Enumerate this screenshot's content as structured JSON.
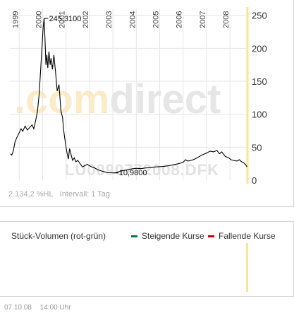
{
  "chart_data": {
    "type": "line",
    "years": [
      "1999",
      "2000",
      "2001",
      "2002",
      "2003",
      "2004",
      "2005",
      "2006",
      "2007",
      "2008"
    ],
    "y_ticks": [
      "250",
      "200",
      "150",
      "100",
      "50",
      "0"
    ],
    "ylim": [
      0,
      255
    ],
    "xlim": [
      1998.6,
      2008.75
    ],
    "grid": true,
    "series": [
      {
        "values": [
          [
            1998.62,
            40
          ],
          [
            1998.68,
            38
          ],
          [
            1998.75,
            45
          ],
          [
            1998.82,
            58
          ],
          [
            1998.9,
            65
          ],
          [
            1999.0,
            72
          ],
          [
            1999.08,
            78
          ],
          [
            1999.15,
            74
          ],
          [
            1999.25,
            82
          ],
          [
            1999.35,
            76
          ],
          [
            1999.45,
            80
          ],
          [
            1999.55,
            84
          ],
          [
            1999.62,
            78
          ],
          [
            1999.7,
            90
          ],
          [
            1999.78,
            105
          ],
          [
            1999.85,
            130
          ],
          [
            1999.92,
            170
          ],
          [
            1999.97,
            200
          ],
          [
            2000.02,
            230
          ],
          [
            2000.06,
            245.31
          ],
          [
            2000.1,
            215
          ],
          [
            2000.14,
            175
          ],
          [
            2000.18,
            190
          ],
          [
            2000.22,
            170
          ],
          [
            2000.27,
            195
          ],
          [
            2000.32,
            175
          ],
          [
            2000.36,
            185
          ],
          [
            2000.42,
            168
          ],
          [
            2000.48,
            190
          ],
          [
            2000.55,
            165
          ],
          [
            2000.62,
            135
          ],
          [
            2000.7,
            145
          ],
          [
            2000.78,
            105
          ],
          [
            2000.85,
            95
          ],
          [
            2000.9,
            75
          ],
          [
            2000.95,
            62
          ],
          [
            2001.0,
            50
          ],
          [
            2001.05,
            40
          ],
          [
            2001.1,
            32
          ],
          [
            2001.15,
            48
          ],
          [
            2001.22,
            38
          ],
          [
            2001.28,
            30
          ],
          [
            2001.35,
            34
          ],
          [
            2001.42,
            28
          ],
          [
            2001.5,
            30
          ],
          [
            2001.6,
            25
          ],
          [
            2001.7,
            20
          ],
          [
            2001.8,
            22
          ],
          [
            2001.9,
            24
          ],
          [
            2002.0,
            22
          ],
          [
            2002.1,
            20
          ],
          [
            2002.2,
            19
          ],
          [
            2002.35,
            16
          ],
          [
            2002.5,
            14
          ],
          [
            2002.65,
            12.5
          ],
          [
            2002.8,
            11.5
          ],
          [
            2002.95,
            11.2
          ],
          [
            2003.05,
            10.98
          ],
          [
            2003.2,
            12
          ],
          [
            2003.35,
            14
          ],
          [
            2003.5,
            15
          ],
          [
            2003.65,
            16
          ],
          [
            2003.8,
            17
          ],
          [
            2004.0,
            18
          ],
          [
            2004.2,
            17.5
          ],
          [
            2004.4,
            18.5
          ],
          [
            2004.6,
            19
          ],
          [
            2004.8,
            20
          ],
          [
            2005.0,
            20.5
          ],
          [
            2005.2,
            21
          ],
          [
            2005.4,
            22
          ],
          [
            2005.6,
            23.5
          ],
          [
            2005.8,
            25
          ],
          [
            2006.0,
            27
          ],
          [
            2006.1,
            31
          ],
          [
            2006.2,
            29
          ],
          [
            2006.35,
            30
          ],
          [
            2006.5,
            32
          ],
          [
            2006.65,
            35
          ],
          [
            2006.8,
            38
          ],
          [
            2007.0,
            41
          ],
          [
            2007.15,
            44
          ],
          [
            2007.3,
            43
          ],
          [
            2007.45,
            45
          ],
          [
            2007.55,
            40
          ],
          [
            2007.65,
            43
          ],
          [
            2007.8,
            36
          ],
          [
            2007.95,
            34
          ],
          [
            2008.05,
            31
          ],
          [
            2008.15,
            30
          ],
          [
            2008.3,
            29
          ],
          [
            2008.4,
            31
          ],
          [
            2008.5,
            28
          ],
          [
            2008.6,
            26
          ],
          [
            2008.68,
            23
          ],
          [
            2008.73,
            20
          ]
        ]
      }
    ],
    "annotations": [
      {
        "label": "245,3100",
        "x": 2000.06,
        "y": 245.31
      },
      {
        "label": "10,9800",
        "x": 2003.05,
        "y": 10.98
      }
    ],
    "watermark": ".comdirect",
    "isin_watermark": "LU0090772008.DFK",
    "footer": {
      "change": "2.134,2 %HL",
      "interval": "Intervall: 1 Tag"
    }
  },
  "volume": {
    "title": "Stück-Volumen (rot-grün)",
    "legend_up": "Steigende Kurse",
    "legend_down": "Fallende Kurse",
    "color_up": "#007a3d",
    "color_down": "#c00000"
  },
  "timestamp": {
    "date": "07.10.08",
    "time": "14:00 Uhr"
  },
  "colors": {
    "axis": "#ffe58a",
    "grid": "#e6e6e6",
    "line": "#000000",
    "wm_orange": "#fdebc7",
    "wm_gray": "#e6e6e6"
  }
}
